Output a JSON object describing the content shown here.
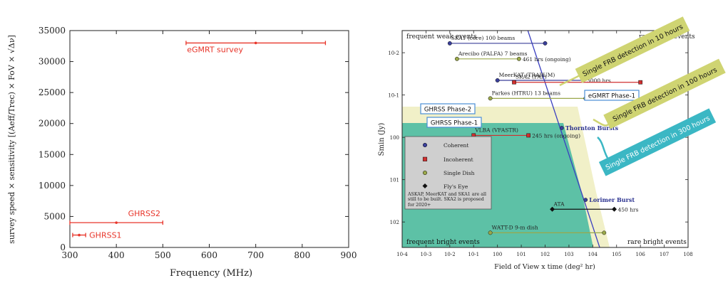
{
  "chart_data": [
    {
      "type": "line",
      "xlabel": "Frequency (MHz)",
      "ylabel": "survey speed × sensitivity [(Aeff/Trec) × FoV × √Δν]",
      "xlim": [
        300,
        900
      ],
      "ylim": [
        0,
        35000
      ],
      "xticks": [
        "300",
        "400",
        "500",
        "600",
        "700",
        "800",
        "900"
      ],
      "yticks": [
        "0",
        "5000",
        "10000",
        "15000",
        "20000",
        "25000",
        "30000",
        "35000"
      ],
      "grid": false,
      "series_color": "#e8352a",
      "series": [
        {
          "name": "eGMRT survey",
          "x_start": 550,
          "x_end": 850,
          "y": 33000,
          "mid": 700
        },
        {
          "name": "GHRSS2",
          "x_start": 300,
          "x_end": 500,
          "y": 4000,
          "mid": 400
        },
        {
          "name": "GHRSS1",
          "x_start": 306,
          "x_end": 334,
          "y": 2000,
          "mid": 320
        }
      ]
    },
    {
      "type": "scatter",
      "xlabel": "Field of View x time (deg² hr)",
      "ylabel": "Smin (Jy)",
      "xlim": [
        0.0001,
        100000000
      ],
      "ylim": [
        0.003,
        400
      ],
      "x_scale": "log",
      "y_scale": "log-reversed",
      "xticks": [
        "10-4",
        "10-3",
        "10-2",
        "10-1",
        "100",
        "101",
        "102",
        "103",
        "104",
        "105",
        "106",
        "107",
        "108"
      ],
      "yticks": [
        "10-2",
        "10-1",
        "100",
        "101",
        "102"
      ],
      "corner_labels": {
        "top_left": "frequent weak events",
        "top_right": "rare weak events",
        "bottom_left": "frequent bright events",
        "bottom_right": "rare bright events"
      },
      "legend": {
        "entries": [
          {
            "label": "Coherent",
            "color": "#3a3f9a",
            "marker": "circle"
          },
          {
            "label": "Incoherent",
            "color": "#d12f2f",
            "marker": "square"
          },
          {
            "label": "Single Dish",
            "color": "#9aa84a",
            "marker": "circle"
          },
          {
            "label": "Fly's Eye",
            "color": "#111111",
            "marker": "diamond"
          }
        ],
        "note": "ASKAP, MeerKAT and SKA1 are all still to be built. SKA2 is proposed for 2020+"
      },
      "instruments": [
        {
          "label": "SKA1 (core) 100 beams",
          "x_start": 0.01,
          "x_end": 100,
          "y": 0.006,
          "color": "#3a3f9a"
        },
        {
          "label": "Arecibo (PALFA) 7 beams",
          "x_start": 0.02,
          "x_end": 8,
          "y": 0.014,
          "color": "#9aa84a"
        },
        {
          "label": "461 hrs (ongoing)",
          "x_start": 8,
          "x_end": 8,
          "y": 0.014,
          "color": "#9aa84a"
        },
        {
          "label": "MeerKAT (TRAPUM)",
          "x_start": 1,
          "x_end": 4000,
          "y": 0.045,
          "color": "#3a3f9a"
        },
        {
          "label": "3000 hrs",
          "x_start": 4000,
          "x_end": 4000,
          "y": 0.045,
          "color": "#3a3f9a"
        },
        {
          "label": "SKA2 (PAF)",
          "x_start": 5,
          "x_end": 1000000,
          "y": 0.05,
          "color": "#d12f2f"
        },
        {
          "label": "Parkes (HTRU) 13 beams",
          "x_start": 0.5,
          "x_end": 5000,
          "y": 0.12,
          "color": "#9aa84a"
        },
        {
          "label": "VLBA (VFASTR)",
          "x_start": 0.1,
          "x_end": 20,
          "y": 0.9,
          "color": "#d12f2f"
        },
        {
          "label": "245 hrs (ongoing)",
          "x_start": 20,
          "x_end": 20,
          "y": 0.9,
          "color": "#d12f2f"
        },
        {
          "label": "ATA",
          "x_start": 200,
          "x_end": 80000,
          "y": 50,
          "color": "#111111"
        },
        {
          "label": "450 hrs",
          "x_start": 80000,
          "x_end": 80000,
          "y": 50,
          "color": "#111111"
        },
        {
          "label": "WATT-D 9-m dish",
          "x_start": 0.5,
          "x_end": 30000,
          "y": 180,
          "color": "#9aa84a"
        }
      ],
      "bursts": [
        {
          "label": "Thornton Bursts",
          "x": 500,
          "y": 0.6
        },
        {
          "label": "Lorimer Burst",
          "x": 5000,
          "y": 30
        }
      ],
      "boxed_labels": [
        {
          "label": "GHRSS Phase-2",
          "color": "#4a8ed6"
        },
        {
          "label": "GHRSS Phase-1",
          "color": "#4a8ed6"
        },
        {
          "label": "eGMRT Phase-1",
          "color": "#4a8ed6"
        }
      ],
      "banners": [
        {
          "label": "Single FRB detection in 10 hours",
          "color": "#cfd472"
        },
        {
          "label": "Single FRB detection in 100 hours",
          "color": "#cfd472"
        },
        {
          "label": "Single FRB detection in 300 hours",
          "color": "#3bb7c4"
        }
      ]
    }
  ]
}
